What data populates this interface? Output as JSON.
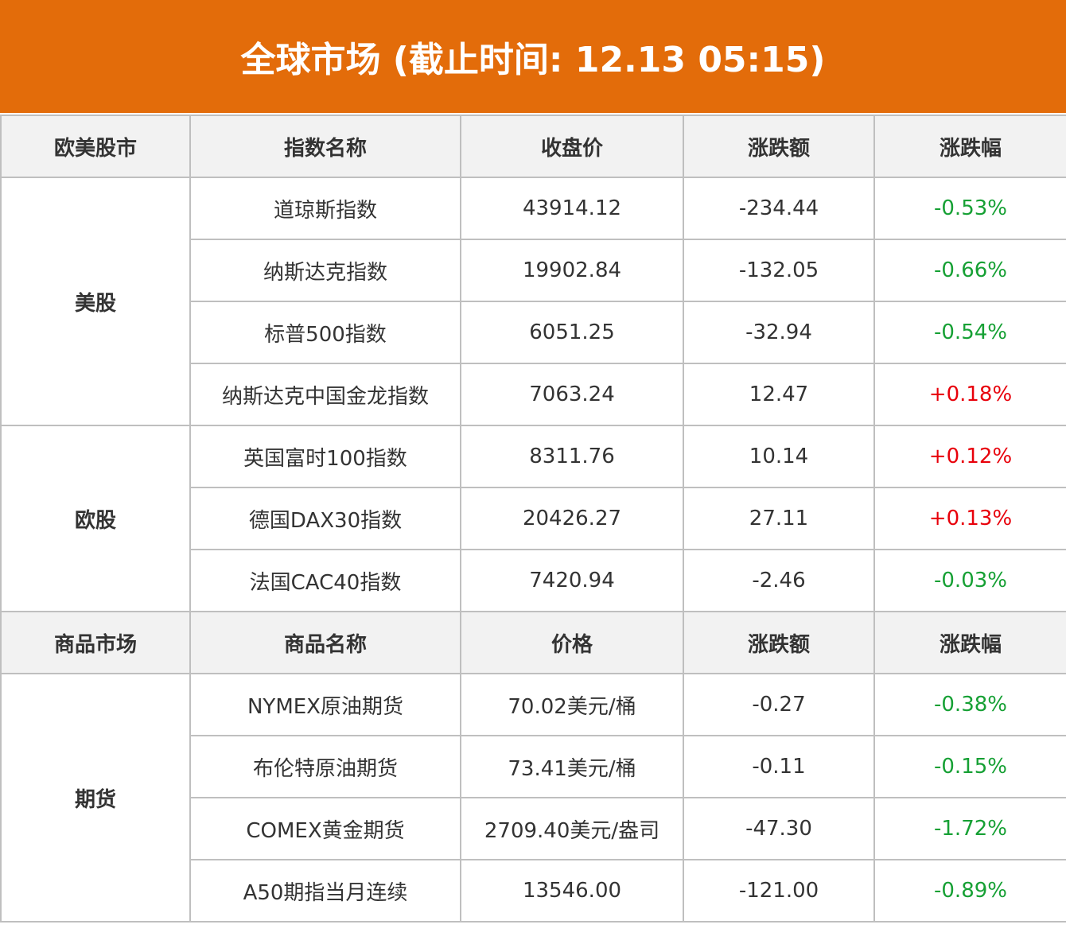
{
  "title": "全球市场 (截止时间: 12.13 05:15)",
  "colors": {
    "header_bg": "#E36C0A",
    "up": "#E8000B",
    "down": "#16A034"
  },
  "stock_header": [
    "欧美股市",
    "指数名称",
    "收盘价",
    "涨跌额",
    "涨跌幅"
  ],
  "stock_groups": [
    {
      "name": "美股",
      "rows": [
        {
          "name": "道琼斯指数",
          "price": "43914.12",
          "change": "-234.44",
          "pct": "-0.53%",
          "dir": "down"
        },
        {
          "name": "纳斯达克指数",
          "price": "19902.84",
          "change": "-132.05",
          "pct": "-0.66%",
          "dir": "down"
        },
        {
          "name": "标普500指数",
          "price": "6051.25",
          "change": "-32.94",
          "pct": "-0.54%",
          "dir": "down"
        },
        {
          "name": "纳斯达克中国金龙指数",
          "price": "7063.24",
          "change": "12.47",
          "pct": "+0.18%",
          "dir": "up"
        }
      ]
    },
    {
      "name": "欧股",
      "rows": [
        {
          "name": "英国富时100指数",
          "price": "8311.76",
          "change": "10.14",
          "pct": "+0.12%",
          "dir": "up"
        },
        {
          "name": "德国DAX30指数",
          "price": "20426.27",
          "change": "27.11",
          "pct": "+0.13%",
          "dir": "up"
        },
        {
          "name": "法国CAC40指数",
          "price": "7420.94",
          "change": "-2.46",
          "pct": "-0.03%",
          "dir": "down"
        }
      ]
    }
  ],
  "commodity_header": [
    "商品市场",
    "商品名称",
    "价格",
    "涨跌额",
    "涨跌幅"
  ],
  "commodity_groups": [
    {
      "name": "期货",
      "rows": [
        {
          "name": "NYMEX原油期货",
          "price": "70.02美元/桶",
          "change": "-0.27",
          "pct": "-0.38%",
          "dir": "down"
        },
        {
          "name": "布伦特原油期货",
          "price": "73.41美元/桶",
          "change": "-0.11",
          "pct": "-0.15%",
          "dir": "down"
        },
        {
          "name": "COMEX黄金期货",
          "price": "2709.40美元/盎司",
          "change": "-47.30",
          "pct": "-1.72%",
          "dir": "down"
        },
        {
          "name": "A50期指当月连续",
          "price": "13546.00",
          "change": "-121.00",
          "pct": "-0.89%",
          "dir": "down"
        }
      ]
    }
  ]
}
